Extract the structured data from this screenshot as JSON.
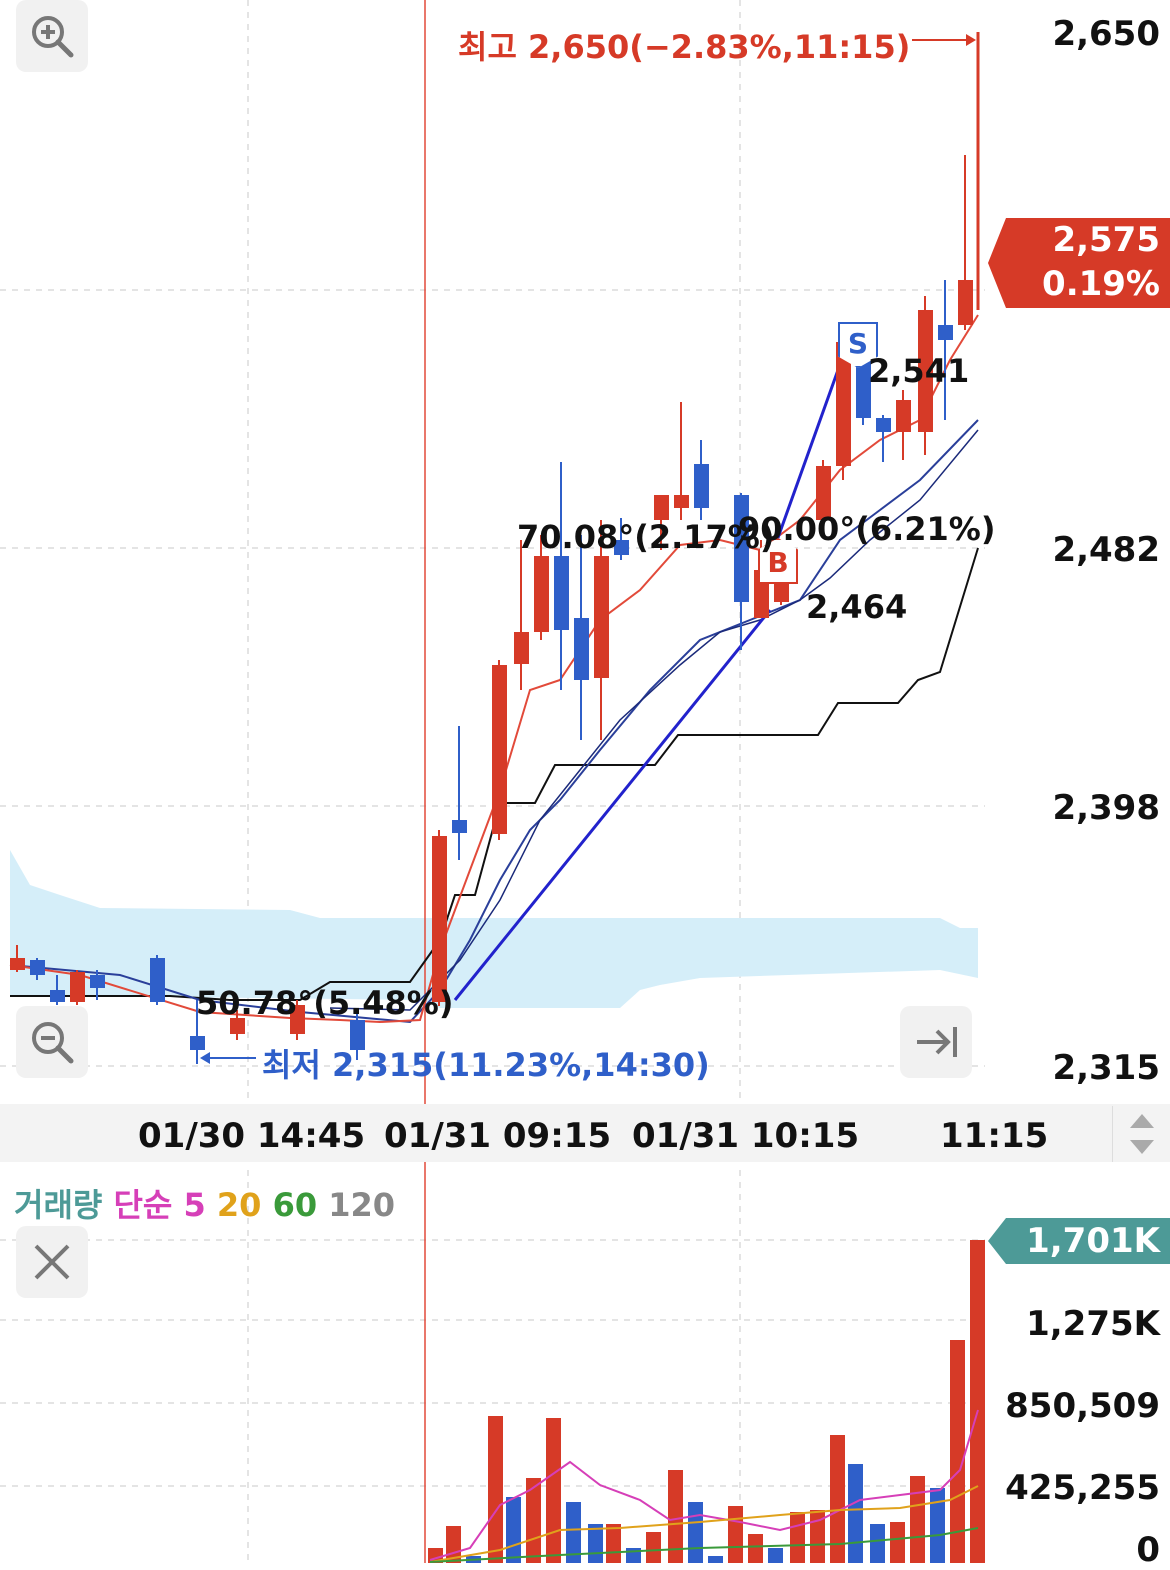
{
  "price_axis": [
    "2,650",
    "2,482",
    "2,398",
    "2,315"
  ],
  "current_price": {
    "price": "2,575",
    "change": "0.19%"
  },
  "high_label": "최고 2,650(−2.83%,11:15)",
  "low_label": "최저 2,315(11.23%,14:30)",
  "angle_labels": {
    "a1": "50.78°(5.48%)",
    "a2": "70.08°(2.17%)",
    "a3": "90.00°(6.21%)"
  },
  "point_labels": {
    "p1": "2,541",
    "p2": "2,464"
  },
  "markers": {
    "sell": "S",
    "buy": "B"
  },
  "time_axis": [
    "01/30 14:45",
    "01/31 09:15",
    "01/31 10:15",
    "11:15"
  ],
  "volume_legend": {
    "title": "거래량",
    "type": "단순",
    "ma5": "5",
    "ma20": "20",
    "ma60": "60",
    "ma120": "120"
  },
  "volume_axis": [
    "1,275K",
    "850,509",
    "425,255",
    "0"
  ],
  "volume_current": "1,701K",
  "colors": {
    "up": "#d63a27",
    "down": "#2f5fc9",
    "cloud": "#d5eef9",
    "volume_tag": "#4d9a97",
    "ma5": "#d63fb8",
    "ma20": "#e0a21b",
    "ma60": "#3a9a3a",
    "ma120": "#888888"
  },
  "icons": {
    "zoom_in": "magnifier-plus-icon",
    "zoom_out": "magnifier-minus-icon",
    "go_latest": "arrow-to-end-icon",
    "close_volume": "close-icon",
    "scroll": "up-down-arrows-icon"
  }
}
